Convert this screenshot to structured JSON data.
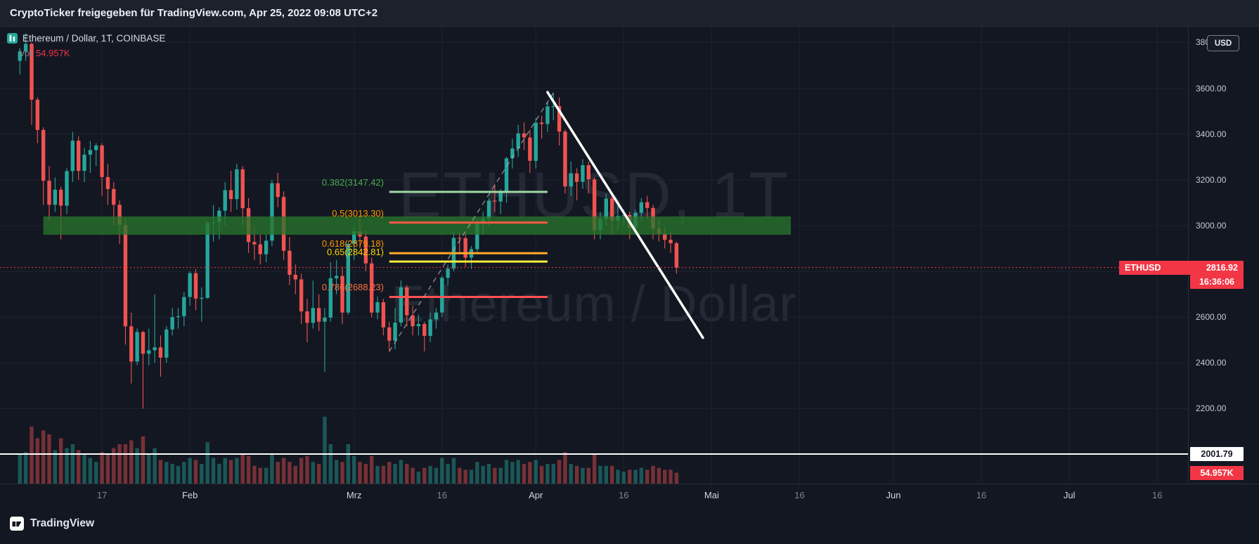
{
  "header": {
    "attribution": "CryptoTicker freigegeben für TradingView.com, Apr 25, 2022 09:08 UTC+2"
  },
  "legend": {
    "symbol_title": "Ethereum / Dollar, 1T, COINBASE",
    "vol_label": "Vol",
    "vol_value": "54.957K"
  },
  "watermark": {
    "line1": "ETHUSD, 1T",
    "line2": "Ethereum / Dollar"
  },
  "price_scale": {
    "unit_button": "USD",
    "current": {
      "symbol": "ETHUSD",
      "price": "2816.92",
      "countdown": "16:36:06"
    },
    "line_label": "2001.79",
    "volume_label": "54.957K"
  },
  "footer": {
    "brand": "TradingView"
  },
  "colors": {
    "background": "#131722",
    "up": "#26a69a",
    "down": "#ef5350",
    "up_vol": "rgba(38,166,154,0.45)",
    "down_vol": "rgba(239,83,80,0.45)",
    "accent_red": "#f23645",
    "band": "rgba(40,116,44,0.78)",
    "grid": "#1e2330",
    "white_line": "#ffffff",
    "dashed_line": "#b2b5be"
  },
  "chart_data": {
    "type": "candlestick",
    "title": "Ethereum / Dollar, 1T, COINBASE",
    "symbol": "ETHUSD",
    "interval": "1T",
    "exchange": "COINBASE",
    "start_date": "2022-01-03",
    "end_date": "2022-04-25",
    "ylim": [
      2000,
      3840
    ],
    "grid_prices": [
      2000,
      2200,
      2400,
      2600,
      2800,
      3000,
      3200,
      3400,
      3600,
      3800
    ],
    "price_ticks": [
      {
        "price": 3800,
        "label": "3800.00"
      },
      {
        "price": 3600,
        "label": "3600.00"
      },
      {
        "price": 3400,
        "label": "3400.00"
      },
      {
        "price": 3200,
        "label": "3200.00"
      },
      {
        "price": 3000,
        "label": "3000.00"
      },
      {
        "price": 2600,
        "label": "2600.00"
      },
      {
        "price": 2400,
        "label": "2400.00"
      },
      {
        "price": 2200,
        "label": "2200.00"
      }
    ],
    "time_ticks": [
      {
        "label": "17",
        "day": 14,
        "month": false
      },
      {
        "label": "Feb",
        "day": 29,
        "month": true
      },
      {
        "label": "Mrz",
        "day": 57,
        "month": true
      },
      {
        "label": "16",
        "day": 72,
        "month": false
      },
      {
        "label": "Apr",
        "day": 88,
        "month": true
      },
      {
        "label": "16",
        "day": 103,
        "month": false
      },
      {
        "label": "Mai",
        "day": 118,
        "month": true
      },
      {
        "label": "16",
        "day": 133,
        "month": false
      },
      {
        "label": "Jun",
        "day": 149,
        "month": true
      },
      {
        "label": "16",
        "day": 164,
        "month": false
      },
      {
        "label": "Jul",
        "day": 179,
        "month": true
      },
      {
        "label": "16",
        "day": 194,
        "month": false
      }
    ],
    "current": {
      "price": 2816.92,
      "volume_k": 54.957,
      "countdown": "16:36:06"
    },
    "fib": {
      "anchor_low": 2450,
      "anchor_high": 3580,
      "day_start": 63,
      "day_end": 90,
      "levels": [
        {
          "ratio": 0.382,
          "price": 3147.42,
          "label": "0.382(3147.42)",
          "label_color": "#4caf50",
          "line_color": "#9fd8a3"
        },
        {
          "ratio": 0.5,
          "price": 3013.3,
          "label": "0.5(3013.30)",
          "label_color": "#ff9800",
          "line_color": "#ff5744"
        },
        {
          "ratio": 0.618,
          "price": 2879.18,
          "label": "0.618(2879.18)",
          "label_color": "#ff9800",
          "line_color": "#ffa726"
        },
        {
          "ratio": 0.65,
          "price": 2842.81,
          "label": "0.65(2842.81)",
          "label_color": "#ffd600",
          "line_color": "#ffeb3b"
        },
        {
          "ratio": 0.786,
          "price": 2688.23,
          "label": "0.786(2688.23)",
          "label_color": "#ff7043",
          "line_color": "#ff5252"
        }
      ]
    },
    "overlays": {
      "support_zone": {
        "price_top": 3040,
        "price_bottom": 2960,
        "day_start": 4,
        "day_end": 131.5
      },
      "horizontal_line": {
        "price": 2001.79
      },
      "downtrend_line": {
        "from": {
          "day": 90,
          "price": 3583
        },
        "to": {
          "day": 116.5,
          "price": 2510
        }
      },
      "fib_anchor_line": {
        "from": {
          "day": 63,
          "price": 2450
        },
        "to": {
          "day": 91,
          "price": 3580
        }
      }
    },
    "volume_unit": "K",
    "candles_format": [
      "open",
      "high",
      "low",
      "close",
      "volume_k"
    ],
    "candles": [
      [
        3720,
        3775,
        3660,
        3761,
        150
      ],
      [
        3761,
        3840,
        3720,
        3794,
        160
      ],
      [
        3794,
        3800,
        3440,
        3550,
        290
      ],
      [
        3550,
        3560,
        3360,
        3418,
        230
      ],
      [
        3418,
        3430,
        3090,
        3196,
        270
      ],
      [
        3196,
        3260,
        3020,
        3091,
        250
      ],
      [
        3091,
        3210,
        3060,
        3157,
        170
      ],
      [
        3157,
        3170,
        2940,
        3087,
        230
      ],
      [
        3087,
        3250,
        3050,
        3238,
        180
      ],
      [
        3238,
        3410,
        3190,
        3371,
        200
      ],
      [
        3371,
        3390,
        3200,
        3239,
        170
      ],
      [
        3239,
        3340,
        3190,
        3310,
        150
      ],
      [
        3310,
        3370,
        3230,
        3330,
        130
      ],
      [
        3330,
        3360,
        3260,
        3350,
        110
      ],
      [
        3350,
        3360,
        3130,
        3212,
        160
      ],
      [
        3212,
        3270,
        3090,
        3160,
        150
      ],
      [
        3160,
        3190,
        3000,
        3091,
        180
      ],
      [
        3091,
        3110,
        2920,
        3003,
        200
      ],
      [
        3003,
        3030,
        2480,
        2560,
        200
      ],
      [
        2560,
        2620,
        2310,
        2406,
        220
      ],
      [
        2406,
        2550,
        2390,
        2535,
        180
      ],
      [
        2535,
        2540,
        2200,
        2440,
        240
      ],
      [
        2440,
        2550,
        2390,
        2455,
        150
      ],
      [
        2455,
        2700,
        2400,
        2468,
        180
      ],
      [
        2468,
        2520,
        2340,
        2423,
        120
      ],
      [
        2423,
        2560,
        2400,
        2546,
        110
      ],
      [
        2546,
        2640,
        2520,
        2600,
        100
      ],
      [
        2600,
        2640,
        2550,
        2604,
        90
      ],
      [
        2604,
        2710,
        2560,
        2688,
        110
      ],
      [
        2688,
        2800,
        2650,
        2792,
        130
      ],
      [
        2792,
        2810,
        2630,
        2681,
        120
      ],
      [
        2681,
        2730,
        2580,
        2684,
        100
      ],
      [
        2684,
        3020,
        2680,
        3012,
        210
      ],
      [
        3012,
        3090,
        2930,
        3015,
        130
      ],
      [
        3015,
        3080,
        2940,
        3065,
        100
      ],
      [
        3065,
        3190,
        3000,
        3155,
        130
      ],
      [
        3155,
        3240,
        3060,
        3116,
        120
      ],
      [
        3116,
        3270,
        3070,
        3246,
        130
      ],
      [
        3246,
        3260,
        3000,
        3076,
        150
      ],
      [
        3076,
        3120,
        2880,
        2928,
        140
      ],
      [
        2928,
        3000,
        2850,
        2918,
        90
      ],
      [
        2918,
        2960,
        2830,
        2875,
        80
      ],
      [
        2875,
        2960,
        2840,
        2934,
        80
      ],
      [
        2934,
        3200,
        2910,
        3185,
        150
      ],
      [
        3185,
        3230,
        3080,
        3125,
        110
      ],
      [
        3125,
        3150,
        2850,
        2890,
        130
      ],
      [
        2890,
        2950,
        2740,
        2785,
        110
      ],
      [
        2785,
        2830,
        2700,
        2765,
        90
      ],
      [
        2765,
        2790,
        2570,
        2625,
        130
      ],
      [
        2625,
        2680,
        2490,
        2575,
        140
      ],
      [
        2575,
        2760,
        2550,
        2640,
        110
      ],
      [
        2640,
        2700,
        2540,
        2580,
        100
      ],
      [
        2580,
        2640,
        2360,
        2598,
        340
      ],
      [
        2598,
        2840,
        2580,
        2770,
        200
      ],
      [
        2770,
        2850,
        2700,
        2780,
        120
      ],
      [
        2780,
        2820,
        2570,
        2620,
        110
      ],
      [
        2620,
        2930,
        2610,
        2920,
        200
      ],
      [
        2920,
        3000,
        2850,
        2975,
        140
      ],
      [
        2975,
        3040,
        2900,
        2952,
        110
      ],
      [
        2952,
        2980,
        2800,
        2835,
        100
      ],
      [
        2835,
        2860,
        2600,
        2620,
        140
      ],
      [
        2620,
        2690,
        2590,
        2665,
        90
      ],
      [
        2665,
        2680,
        2520,
        2555,
        90
      ],
      [
        2555,
        2580,
        2450,
        2497,
        110
      ],
      [
        2497,
        2640,
        2460,
        2576,
        100
      ],
      [
        2576,
        2760,
        2560,
        2730,
        120
      ],
      [
        2730,
        2740,
        2560,
        2608,
        100
      ],
      [
        2608,
        2650,
        2520,
        2560,
        80
      ],
      [
        2560,
        2610,
        2520,
        2570,
        60
      ],
      [
        2570,
        2580,
        2450,
        2518,
        80
      ],
      [
        2518,
        2620,
        2490,
        2590,
        90
      ],
      [
        2590,
        2640,
        2550,
        2620,
        80
      ],
      [
        2620,
        2780,
        2600,
        2772,
        130
      ],
      [
        2772,
        2830,
        2740,
        2812,
        100
      ],
      [
        2812,
        2970,
        2800,
        2946,
        130
      ],
      [
        2946,
        2970,
        2880,
        2945,
        80
      ],
      [
        2945,
        2960,
        2820,
        2860,
        70
      ],
      [
        2860,
        2910,
        2810,
        2897,
        70
      ],
      [
        2897,
        3030,
        2880,
        3017,
        110
      ],
      [
        3017,
        3060,
        2960,
        3031,
        90
      ],
      [
        3031,
        3120,
        3000,
        3109,
        100
      ],
      [
        3109,
        3180,
        3060,
        3105,
        80
      ],
      [
        3105,
        3160,
        3050,
        3143,
        80
      ],
      [
        3143,
        3300,
        3100,
        3294,
        120
      ],
      [
        3294,
        3380,
        3250,
        3337,
        110
      ],
      [
        3337,
        3440,
        3300,
        3403,
        120
      ],
      [
        3403,
        3450,
        3330,
        3385,
        100
      ],
      [
        3385,
        3420,
        3230,
        3283,
        110
      ],
      [
        3283,
        3470,
        3250,
        3450,
        120
      ],
      [
        3450,
        3480,
        3380,
        3444,
        90
      ],
      [
        3444,
        3540,
        3410,
        3521,
        100
      ],
      [
        3521,
        3580,
        3460,
        3522,
        100
      ],
      [
        3522,
        3560,
        3350,
        3411,
        120
      ],
      [
        3411,
        3420,
        3140,
        3171,
        160
      ],
      [
        3171,
        3280,
        3130,
        3228,
        100
      ],
      [
        3228,
        3250,
        3110,
        3191,
        90
      ],
      [
        3191,
        3290,
        3160,
        3264,
        80
      ],
      [
        3264,
        3280,
        3140,
        3202,
        80
      ],
      [
        3202,
        3210,
        2940,
        2980,
        150
      ],
      [
        2980,
        3060,
        2940,
        3028,
        90
      ],
      [
        3028,
        3140,
        3000,
        3118,
        90
      ],
      [
        3118,
        3130,
        2960,
        3021,
        90
      ],
      [
        3021,
        3090,
        2980,
        3042,
        70
      ],
      [
        3042,
        3070,
        3000,
        3046,
        60
      ],
      [
        3046,
        3060,
        2940,
        2990,
        70
      ],
      [
        2990,
        3070,
        2960,
        3056,
        70
      ],
      [
        3056,
        3120,
        3020,
        3102,
        80
      ],
      [
        3102,
        3130,
        3030,
        3077,
        70
      ],
      [
        3077,
        3090,
        2940,
        2987,
        90
      ],
      [
        2987,
        3030,
        2930,
        2965,
        80
      ],
      [
        2965,
        2990,
        2900,
        2938,
        70
      ],
      [
        2938,
        2970,
        2880,
        2923,
        70
      ],
      [
        2923,
        2930,
        2790,
        2817,
        55
      ]
    ]
  }
}
